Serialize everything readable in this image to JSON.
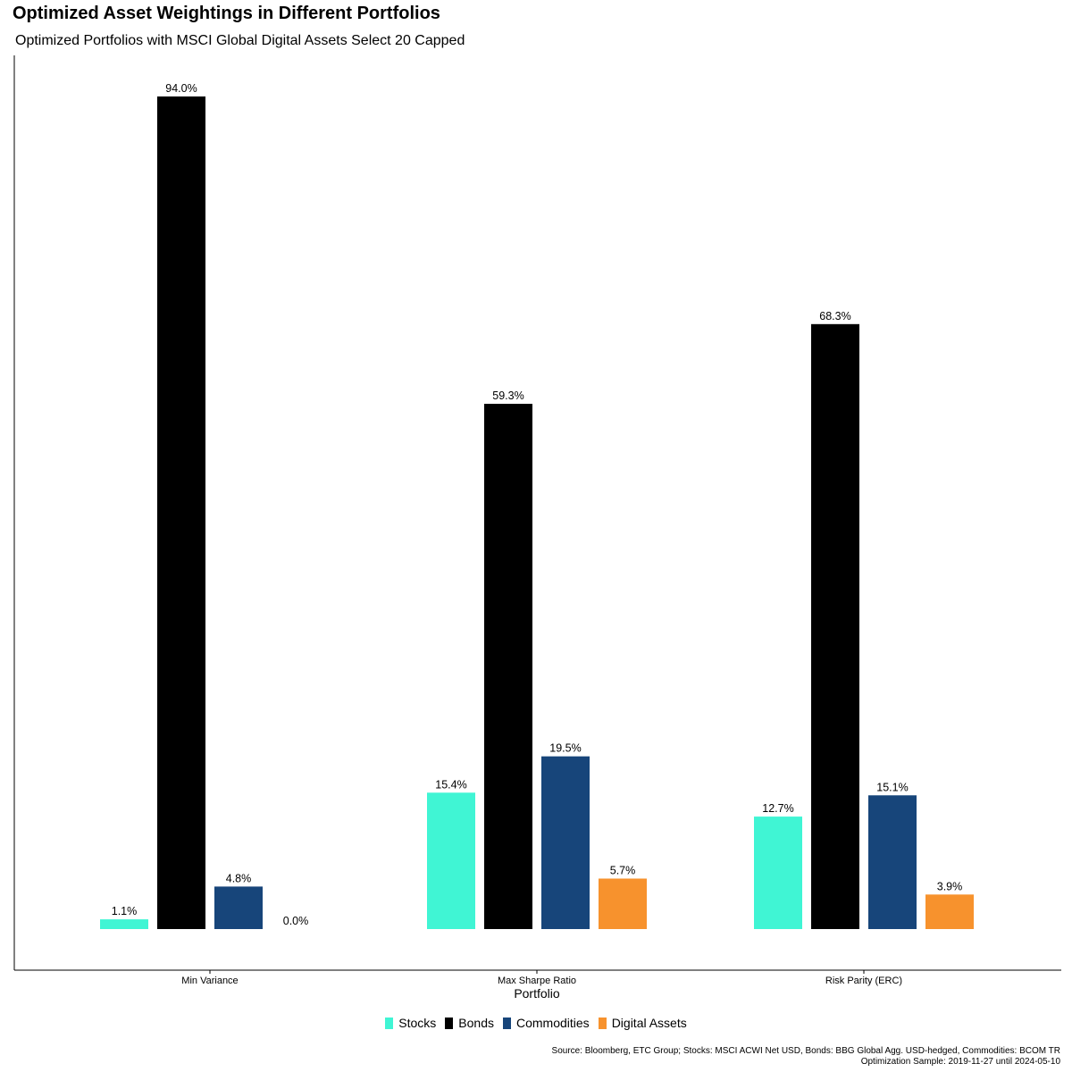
{
  "chart_data": {
    "type": "bar",
    "title": "Optimized Asset Weightings in Different Portfolios",
    "subtitle": "Optimized Portfolios with MSCI Global Digital Assets Select 20 Capped",
    "xlabel": "Portfolio",
    "ylabel": "",
    "ylim": [
      0,
      100
    ],
    "categories": [
      "Min Variance",
      "Max Sharpe Ratio",
      "Risk Parity (ERC)"
    ],
    "series": [
      {
        "name": "Stocks",
        "color": "#40f5d4",
        "values": [
          1.1,
          15.4,
          12.7
        ],
        "labels": [
          "1.1%",
          "15.4%",
          "12.7%"
        ]
      },
      {
        "name": "Bonds",
        "color": "#000000",
        "values": [
          94.0,
          59.3,
          68.3
        ],
        "labels": [
          "94.0%",
          "59.3%",
          "68.3%"
        ]
      },
      {
        "name": "Commodities",
        "color": "#17457a",
        "values": [
          4.8,
          19.5,
          15.1
        ],
        "labels": [
          "4.8%",
          "19.5%",
          "15.1%"
        ]
      },
      {
        "name": "Digital Assets",
        "color": "#f7922d",
        "values": [
          0.0,
          5.7,
          3.9
        ],
        "labels": [
          "0.0%",
          "5.7%",
          "3.9%"
        ]
      }
    ],
    "legend_position": "bottom",
    "grid": false
  },
  "source_line1": "Source: Bloomberg, ETC Group; Stocks: MSCI ACWI Net USD, Bonds: BBG Global Agg. USD-hedged, Commodities: BCOM TR",
  "source_line2": "Optimization Sample: 2019-11-27 until 2024-05-10"
}
